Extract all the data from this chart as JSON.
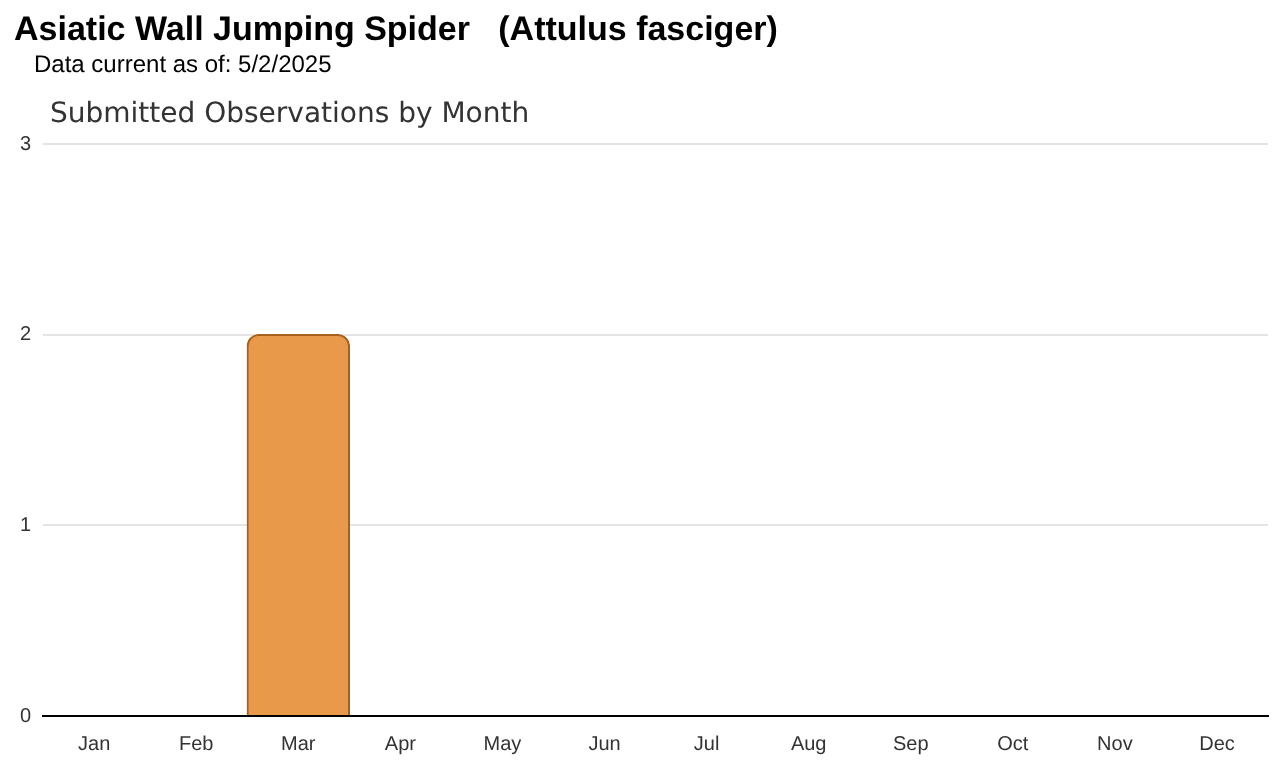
{
  "chart_data": {
    "type": "bar",
    "title": "Asiatic Wall Jumping Spider   (Attulus fasciger)",
    "subtitle": "Data current as of: 5/2/2025",
    "annotations": [
      "Submitted Observations by Month"
    ],
    "categories": [
      "Jan",
      "Feb",
      "Mar",
      "Apr",
      "May",
      "Jun",
      "Jul",
      "Aug",
      "Sep",
      "Oct",
      "Nov",
      "Dec"
    ],
    "values": [
      0,
      0,
      2,
      0,
      0,
      0,
      0,
      0,
      0,
      0,
      0,
      0
    ],
    "color": "#e8994a",
    "ylim": [
      0,
      3
    ],
    "yticks": [
      0,
      1,
      2,
      3
    ],
    "grid": "y",
    "legend": false
  }
}
